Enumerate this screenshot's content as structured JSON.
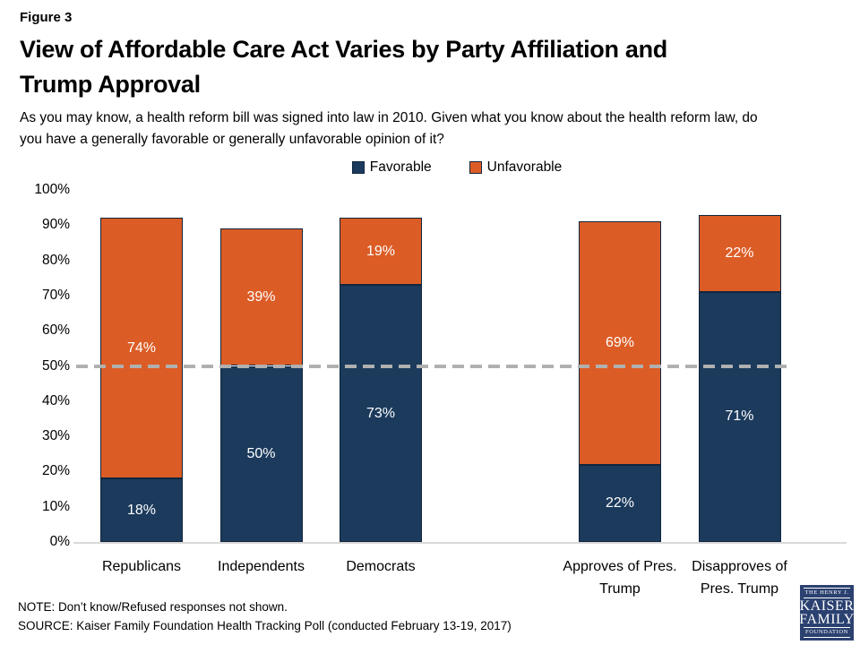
{
  "figure_label": "Figure 3",
  "title": "View of Affordable Care Act Varies by Party Affiliation and\nTrump Approval",
  "subtitle": "As you may know, a health reform bill was signed into law in 2010. Given what you know about the health reform law, do\nyou have a generally favorable or generally unfavorable opinion of it?",
  "note": "NOTE: Don’t know/Refused responses not shown.",
  "source": "SOURCE: Kaiser Family Foundation Health Tracking Poll (conducted February 13-19, 2017)",
  "logo": {
    "line1": "THE HENRY J.",
    "line2": "KAISER",
    "line3": "FAMILY",
    "line4": "FOUNDATION"
  },
  "colors": {
    "favorable": "#1B3A5C",
    "unfavorable": "#DC5C26",
    "reference_line": "#B0B0B0",
    "axis_line": "#D9D9D9"
  },
  "chart_data": {
    "type": "bar",
    "stacked": true,
    "categories": [
      "Republicans",
      "Independents",
      "Democrats",
      "Approves of Pres. Trump",
      "Disapproves of Pres. Trump"
    ],
    "series": [
      {
        "name": "Favorable",
        "color": "#1B3A5C",
        "values": [
          18,
          50,
          73,
          22,
          71
        ]
      },
      {
        "name": "Unfavorable",
        "color": "#DC5C26",
        "values": [
          74,
          39,
          19,
          69,
          22
        ]
      }
    ],
    "value_label_suffix": "%",
    "ylim": [
      0,
      100
    ],
    "ytick_step": 10,
    "ytick_suffix": "%",
    "reference_line_y": 50,
    "slots": [
      0,
      1,
      2,
      4,
      5
    ],
    "legend_position": "top-center",
    "grid": false
  }
}
